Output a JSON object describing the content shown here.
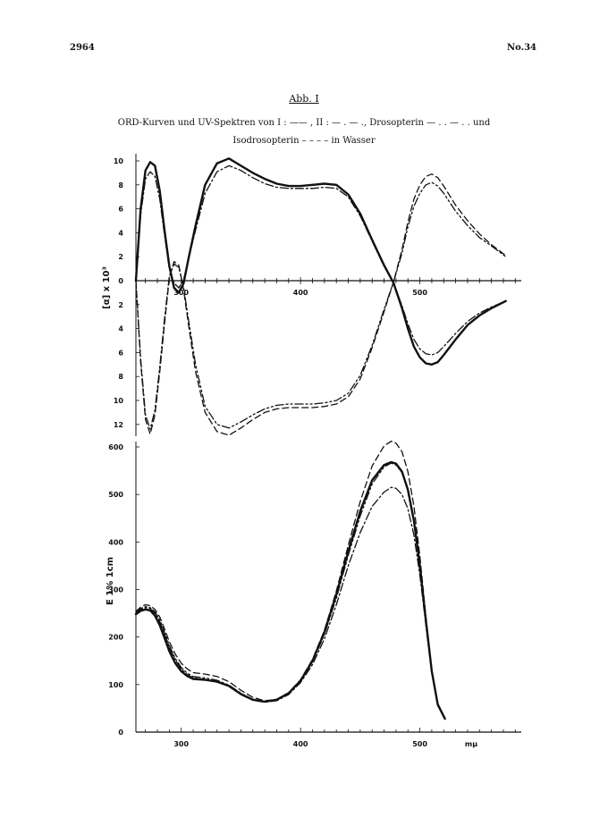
{
  "page": {
    "page_number": "2964",
    "journal_issue": "No.34",
    "figure_label": "Abb. I",
    "caption_line1": "ORD-Kurven und UV-Spektren von I : —— , II : — . — ., Drosopterin — . . — . . und",
    "caption_line2": "Isodrosopterin – – – – in Wasser"
  },
  "chart_data": [
    {
      "type": "line",
      "title": "",
      "xlabel": "",
      "ylabel": "[α] x 10³",
      "xlim": [
        262,
        585
      ],
      "ylim": [
        -12,
        10
      ],
      "x_ticks": [
        "300",
        "400",
        "500"
      ],
      "y_ticks_upper": [
        "10",
        "8",
        "6",
        "4",
        "2",
        "0"
      ],
      "y_ticks_lower": [
        "2",
        "4",
        "6",
        "8",
        "10",
        "12"
      ],
      "series": [
        {
          "name": "I",
          "style": "solid",
          "x": [
            262,
            266,
            270,
            274,
            278,
            282,
            286,
            290,
            294,
            298,
            302,
            306,
            312,
            320,
            330,
            340,
            350,
            360,
            370,
            380,
            390,
            400,
            410,
            420,
            430,
            440,
            450,
            460,
            470,
            478,
            485,
            490,
            495,
            500,
            505,
            510,
            515,
            520,
            530,
            540,
            550,
            560,
            572
          ],
          "y": [
            0,
            6,
            9.2,
            9.9,
            9.6,
            7.5,
            4.2,
            1.2,
            -0.6,
            -1.0,
            -0.2,
            1.8,
            4.6,
            8.0,
            9.8,
            10.2,
            9.6,
            9.0,
            8.5,
            8.1,
            7.9,
            7.9,
            8.0,
            8.1,
            8.0,
            7.2,
            5.6,
            3.4,
            1.3,
            -0.2,
            -2.3,
            -4.0,
            -5.5,
            -6.4,
            -6.9,
            -7.0,
            -6.8,
            -6.2,
            -4.9,
            -3.7,
            -2.9,
            -2.3,
            -1.7
          ]
        },
        {
          "name": "II",
          "style": "dashdot",
          "x": [
            262,
            266,
            270,
            274,
            278,
            282,
            286,
            290,
            294,
            298,
            302,
            306,
            312,
            320,
            330,
            340,
            350,
            360,
            370,
            380,
            390,
            400,
            410,
            420,
            430,
            440,
            450,
            460,
            470,
            478,
            485,
            490,
            495,
            500,
            505,
            510,
            515,
            520,
            530,
            540,
            550,
            560,
            572
          ],
          "y": [
            0,
            5.5,
            8.5,
            9.1,
            8.7,
            6.8,
            3.8,
            1.0,
            -0.2,
            -0.6,
            0.1,
            1.8,
            4.2,
            7.3,
            9.1,
            9.6,
            9.2,
            8.6,
            8.1,
            7.8,
            7.7,
            7.7,
            7.7,
            7.8,
            7.7,
            7.0,
            5.4,
            3.3,
            1.2,
            -0.2,
            -2.1,
            -3.6,
            -4.9,
            -5.7,
            -6.1,
            -6.2,
            -6.0,
            -5.5,
            -4.4,
            -3.4,
            -2.7,
            -2.2,
            -1.7
          ]
        },
        {
          "name": "Drosopterin",
          "style": "dashdotdot",
          "x": [
            262,
            266,
            270,
            274,
            278,
            282,
            286,
            290,
            294,
            298,
            302,
            306,
            312,
            320,
            330,
            340,
            350,
            360,
            370,
            380,
            390,
            400,
            410,
            420,
            430,
            440,
            450,
            460,
            470,
            478,
            485,
            490,
            495,
            500,
            505,
            510,
            515,
            520,
            530,
            540,
            550,
            560,
            572
          ],
          "y": [
            0,
            -6.5,
            -11.2,
            -12.4,
            -10.8,
            -7.2,
            -3.2,
            0.4,
            1.4,
            1.1,
            -0.6,
            -3.2,
            -7.0,
            -10.5,
            -12.0,
            -12.3,
            -11.8,
            -11.2,
            -10.7,
            -10.4,
            -10.3,
            -10.3,
            -10.3,
            -10.2,
            -10.0,
            -9.4,
            -7.9,
            -5.4,
            -2.4,
            -0.1,
            2.3,
            4.5,
            6.2,
            7.3,
            8.0,
            8.2,
            7.9,
            7.3,
            5.8,
            4.6,
            3.6,
            2.9,
            2.0
          ]
        },
        {
          "name": "Isodrosopterin",
          "style": "dashed",
          "x": [
            262,
            266,
            270,
            274,
            278,
            282,
            286,
            290,
            294,
            298,
            302,
            306,
            312,
            320,
            330,
            340,
            350,
            360,
            370,
            380,
            390,
            400,
            410,
            420,
            430,
            440,
            450,
            460,
            470,
            478,
            485,
            490,
            495,
            500,
            505,
            510,
            515,
            520,
            530,
            540,
            550,
            560,
            572
          ],
          "y": [
            0,
            -6.8,
            -11.6,
            -12.8,
            -11.2,
            -7.6,
            -3.6,
            0.2,
            1.6,
            1.3,
            -0.8,
            -3.6,
            -7.6,
            -11.0,
            -12.6,
            -12.9,
            -12.3,
            -11.6,
            -11.0,
            -10.7,
            -10.6,
            -10.6,
            -10.6,
            -10.5,
            -10.3,
            -9.7,
            -8.2,
            -5.6,
            -2.6,
            -0.1,
            2.6,
            4.9,
            6.8,
            8.0,
            8.7,
            8.9,
            8.6,
            7.9,
            6.3,
            5.0,
            3.9,
            3.0,
            2.1
          ]
        }
      ]
    },
    {
      "type": "line",
      "title": "",
      "xlabel": "mμ",
      "ylabel": "E 1% 1cm",
      "xlim": [
        262,
        585
      ],
      "ylim": [
        0,
        600
      ],
      "x_ticks": [
        "300",
        "400",
        "500",
        "mμ"
      ],
      "y_ticks": [
        "0",
        "100",
        "200",
        "300",
        "400",
        "500",
        "600"
      ],
      "series": [
        {
          "name": "I",
          "style": "solid",
          "x": [
            262,
            266,
            270,
            274,
            278,
            282,
            286,
            290,
            295,
            300,
            305,
            310,
            320,
            330,
            340,
            350,
            360,
            370,
            380,
            390,
            400,
            410,
            420,
            430,
            440,
            450,
            460,
            470,
            476,
            480,
            485,
            490,
            495,
            500,
            505,
            510,
            515,
            521
          ],
          "y": [
            248,
            255,
            258,
            256,
            245,
            225,
            198,
            170,
            145,
            128,
            118,
            112,
            110,
            106,
            97,
            80,
            68,
            64,
            68,
            82,
            108,
            150,
            210,
            290,
            380,
            465,
            530,
            562,
            568,
            565,
            548,
            510,
            445,
            350,
            235,
            128,
            58,
            28
          ]
        },
        {
          "name": "II",
          "style": "dashdot",
          "x": [
            262,
            266,
            270,
            274,
            278,
            282,
            286,
            290,
            295,
            300,
            305,
            310,
            320,
            330,
            340,
            350,
            360,
            370,
            380,
            390,
            400,
            410,
            420,
            430,
            440,
            450,
            460,
            470,
            476,
            480,
            485,
            490,
            495,
            500,
            505,
            510,
            515,
            521
          ],
          "y": [
            250,
            258,
            262,
            260,
            250,
            232,
            206,
            178,
            152,
            133,
            121,
            114,
            111,
            106,
            96,
            79,
            67,
            63,
            66,
            79,
            104,
            142,
            196,
            268,
            350,
            420,
            475,
            505,
            515,
            513,
            500,
            470,
            415,
            330,
            225,
            125,
            58,
            28
          ]
        },
        {
          "name": "Drosopterin",
          "style": "dashdotdot",
          "x": [
            262,
            266,
            270,
            274,
            278,
            282,
            286,
            290,
            295,
            300,
            305,
            310,
            320,
            330,
            340,
            350,
            360,
            370,
            380,
            390,
            400,
            410,
            420,
            430,
            440,
            450,
            460,
            470,
            476,
            480,
            485,
            490,
            495,
            500,
            505,
            510,
            515,
            521
          ],
          "y": [
            252,
            260,
            264,
            262,
            253,
            236,
            210,
            182,
            155,
            136,
            124,
            117,
            114,
            109,
            99,
            82,
            69,
            64,
            67,
            81,
            107,
            148,
            205,
            282,
            372,
            455,
            522,
            558,
            566,
            562,
            546,
            508,
            443,
            348,
            234,
            128,
            58,
            28
          ]
        },
        {
          "name": "Isodrosopterin",
          "style": "dashed",
          "x": [
            262,
            266,
            270,
            274,
            278,
            282,
            286,
            290,
            295,
            300,
            305,
            310,
            320,
            330,
            340,
            350,
            360,
            370,
            380,
            390,
            400,
            410,
            420,
            430,
            440,
            450,
            460,
            470,
            476,
            480,
            485,
            490,
            495,
            500,
            505,
            510,
            515,
            521
          ],
          "y": [
            254,
            263,
            268,
            266,
            258,
            242,
            217,
            190,
            164,
            145,
            133,
            125,
            122,
            117,
            106,
            88,
            73,
            66,
            69,
            83,
            110,
            153,
            214,
            297,
            393,
            485,
            560,
            602,
            612,
            608,
            590,
            548,
            476,
            370,
            244,
            132,
            60,
            30
          ]
        }
      ]
    }
  ]
}
